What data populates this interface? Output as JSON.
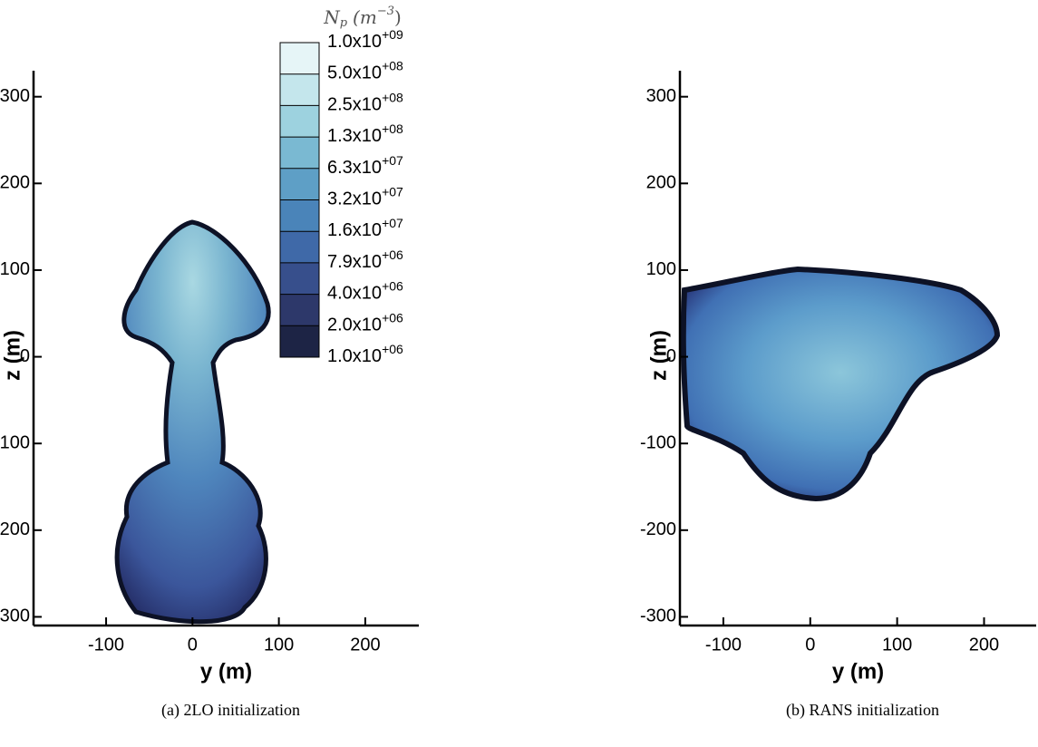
{
  "colorbar": {
    "title": {
      "symbol": "N",
      "sub": "p",
      "unit": "(m",
      "exp": "−3",
      "close": ")"
    },
    "labels": [
      {
        "text": "1.0x10",
        "exp": "+09"
      },
      {
        "text": "5.0x10",
        "exp": "+08"
      },
      {
        "text": "2.5x10",
        "exp": "+08"
      },
      {
        "text": "1.3x10",
        "exp": "+08"
      },
      {
        "text": "6.3x10",
        "exp": "+07"
      },
      {
        "text": "3.2x10",
        "exp": "+07"
      },
      {
        "text": "1.6x10",
        "exp": "+07"
      },
      {
        "text": "7.9x10",
        "exp": "+06"
      },
      {
        "text": "4.0x10",
        "exp": "+06"
      },
      {
        "text": "2.0x10",
        "exp": "+06"
      },
      {
        "text": "1.0x10",
        "exp": "+06"
      }
    ],
    "colors": [
      "#e6f5f7",
      "#c4e6ec",
      "#9dd2df",
      "#7ab9d2",
      "#5e9fc6",
      "#4a84b9",
      "#3f69a8",
      "#374f8c",
      "#2d386a",
      "#1d2445",
      "#0b0e1c"
    ]
  },
  "chart_data": [
    {
      "type": "contour",
      "xlabel": "y (m)",
      "ylabel": "z (m)",
      "caption": "(a) 2LO initialization",
      "xlim": [
        -184,
        262
      ],
      "ylim": [
        -310,
        330
      ],
      "xticks": [
        -100,
        0,
        100,
        200
      ],
      "yticks": [
        -300,
        -200,
        -100,
        0,
        100,
        200,
        300
      ]
    },
    {
      "type": "contour",
      "xlabel": "y (m)",
      "ylabel": "z (m)",
      "caption": "(b) RANS initialization",
      "xlim": [
        -150,
        260
      ],
      "ylim": [
        -310,
        330
      ],
      "xticks": [
        -100,
        0,
        100,
        200
      ],
      "yticks": [
        -300,
        -200,
        -100,
        0,
        100,
        200,
        300
      ]
    }
  ]
}
